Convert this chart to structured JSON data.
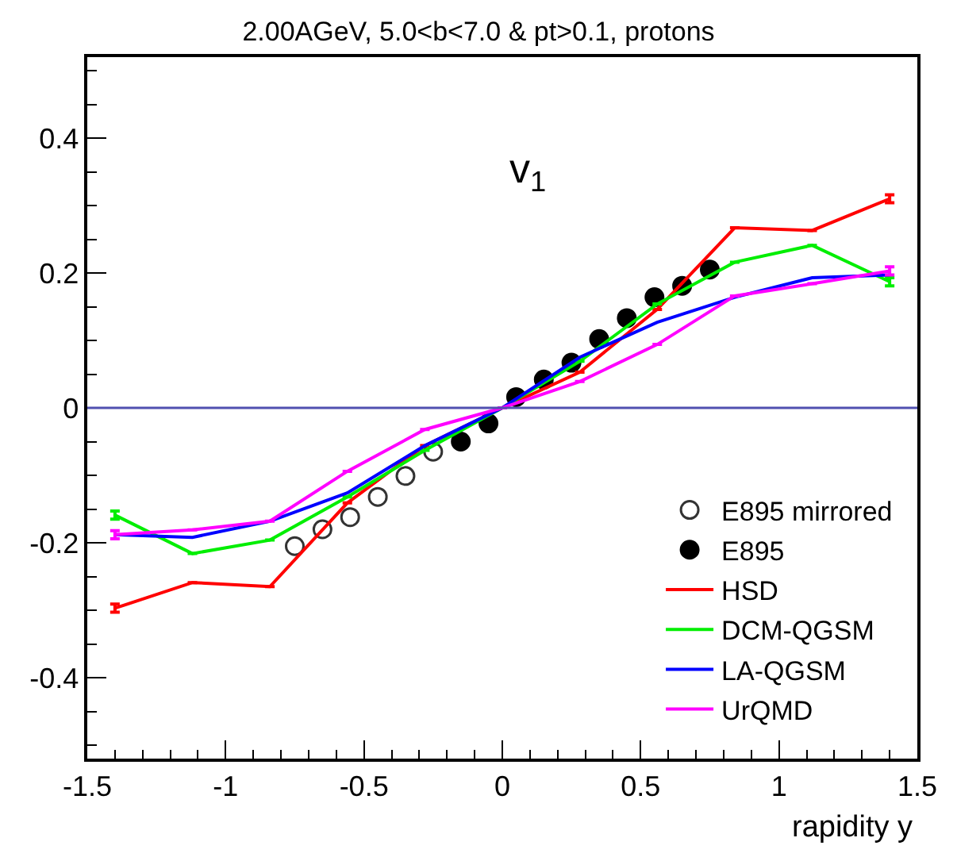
{
  "chart_data": {
    "type": "line",
    "title": "2.00AGeV, 5.0<b<7.0 & pt>0.1, protons",
    "xlabel": "rapidity y",
    "annotations": [
      "v$_{1}$"
    ],
    "xlim": [
      -1.5,
      1.5
    ],
    "xticks": [
      -1.5,
      -1,
      -0.5,
      0,
      0.5,
      1,
      1.5
    ],
    "ylim": [
      -0.52,
      0.52
    ],
    "yticks": [
      -0.4,
      -0.2,
      0,
      0.2,
      0.4
    ],
    "legend": "bottom right",
    "ref_lines": [
      {
        "axis": "y",
        "value": 0,
        "color": "#5050b0"
      }
    ],
    "series": [
      {
        "name": "E895 mirrored",
        "type": "scatter",
        "marker": "circle-open",
        "color": "#333333",
        "x": [
          -0.75,
          -0.65,
          -0.55,
          -0.45,
          -0.35,
          -0.25
        ],
        "values": [
          -0.205,
          -0.18,
          -0.162,
          -0.132,
          -0.101,
          -0.065
        ]
      },
      {
        "name": "E895",
        "type": "scatter",
        "marker": "circle",
        "color": "#000000",
        "x": [
          -0.15,
          -0.05,
          0.05,
          0.15,
          0.25,
          0.35,
          0.45,
          0.55,
          0.65,
          0.75
        ],
        "values": [
          -0.05,
          -0.023,
          0.016,
          0.042,
          0.067,
          0.102,
          0.133,
          0.164,
          0.181,
          0.205
        ]
      },
      {
        "name": "HSD",
        "marker": "none",
        "color": "#ff0000",
        "x": [
          -1.4,
          -1.12,
          -0.84,
          -0.56,
          -0.28,
          0,
          0.28,
          0.56,
          0.84,
          1.12,
          1.4
        ],
        "values": [
          -0.297,
          -0.259,
          -0.265,
          -0.141,
          -0.056,
          0,
          0.053,
          0.146,
          0.267,
          0.263,
          0.31
        ],
        "errors": [
          0.006,
          null,
          null,
          null,
          null,
          null,
          null,
          null,
          null,
          null,
          0.006
        ]
      },
      {
        "name": "DCM-QGSM",
        "marker": "none",
        "color": "#00ee00",
        "x": [
          -1.4,
          -1.12,
          -0.84,
          -0.56,
          -0.28,
          0,
          0.28,
          0.56,
          0.84,
          1.12,
          1.4
        ],
        "values": [
          -0.159,
          -0.216,
          -0.196,
          -0.132,
          -0.063,
          0,
          0.069,
          0.154,
          0.216,
          0.241,
          0.187
        ],
        "errors": [
          0.006,
          null,
          null,
          null,
          null,
          null,
          null,
          null,
          null,
          null,
          0.006
        ]
      },
      {
        "name": "LA-QGSM",
        "marker": "none",
        "color": "#0000ff",
        "x": [
          -1.4,
          -1.12,
          -0.84,
          -0.56,
          -0.28,
          0,
          0.28,
          0.56,
          0.84,
          1.12,
          1.4
        ],
        "values": [
          -0.188,
          -0.192,
          -0.168,
          -0.126,
          -0.056,
          0,
          0.075,
          0.127,
          0.164,
          0.193,
          0.197
        ]
      },
      {
        "name": "UrQMD",
        "marker": "none",
        "color": "#ff00ff",
        "x": [
          -1.4,
          -1.12,
          -0.84,
          -0.56,
          -0.28,
          0,
          0.28,
          0.56,
          0.84,
          1.12,
          1.4
        ],
        "values": [
          -0.188,
          -0.181,
          -0.168,
          -0.094,
          -0.032,
          0,
          0.039,
          0.094,
          0.166,
          0.184,
          0.203
        ],
        "errors": [
          0.006,
          null,
          null,
          null,
          null,
          null,
          null,
          null,
          null,
          null,
          0.006
        ]
      }
    ]
  }
}
